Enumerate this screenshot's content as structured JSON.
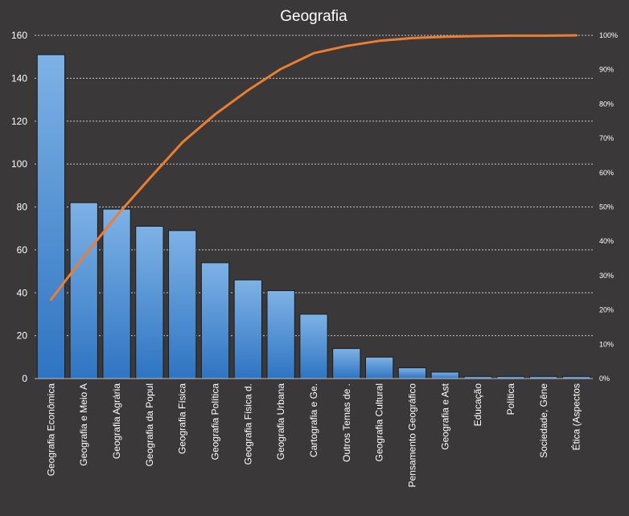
{
  "chart_data": {
    "type": "bar",
    "title": "Geografia",
    "categories": [
      "Geografia Econômica",
      "Geografia e Meio A",
      "Geografia Agrária",
      "Geografia da Popul",
      "Geografia Física",
      "Geografia Política",
      "Geografia Física d.",
      "Geografia Urbana",
      "Cartografia e Ge.",
      "Outros Temas de .",
      "Geografia Cultural",
      "Pensamento Geográfico",
      "Geografia e Ast",
      "Educação",
      "Política",
      "Sociedade, Gêne",
      "Ética (Aspectos"
    ],
    "series": [
      {
        "type": "bar",
        "axis": "left",
        "values": [
          151,
          82,
          79,
          71,
          69,
          54,
          46,
          41,
          30,
          14,
          10,
          5,
          3,
          1,
          1,
          1,
          1
        ]
      },
      {
        "type": "line",
        "axis": "right",
        "values": [
          0.23,
          0.355,
          0.475,
          0.583,
          0.688,
          0.77,
          0.84,
          0.902,
          0.948,
          0.969,
          0.984,
          0.992,
          0.996,
          0.998,
          0.999,
          0.999,
          1.0
        ]
      }
    ],
    "ylim": [
      0,
      160
    ],
    "yticks": [
      "0",
      "20",
      "40",
      "60",
      "80",
      "100",
      "120",
      "140",
      "160"
    ],
    "y2lim": [
      0,
      1
    ],
    "y2ticks": [
      "0%",
      "10%",
      "20%",
      "30%",
      "40%",
      "50%",
      "60%",
      "70%",
      "80%",
      "90%",
      "100%"
    ],
    "grid": true,
    "colors": {
      "background": "#3a3838",
      "bar_top": "#7eb2e6",
      "bar_bottom": "#2e74c2",
      "bar_stroke": "#1b1b1b",
      "line": "#ed7d31",
      "text": "#ffffff"
    }
  }
}
